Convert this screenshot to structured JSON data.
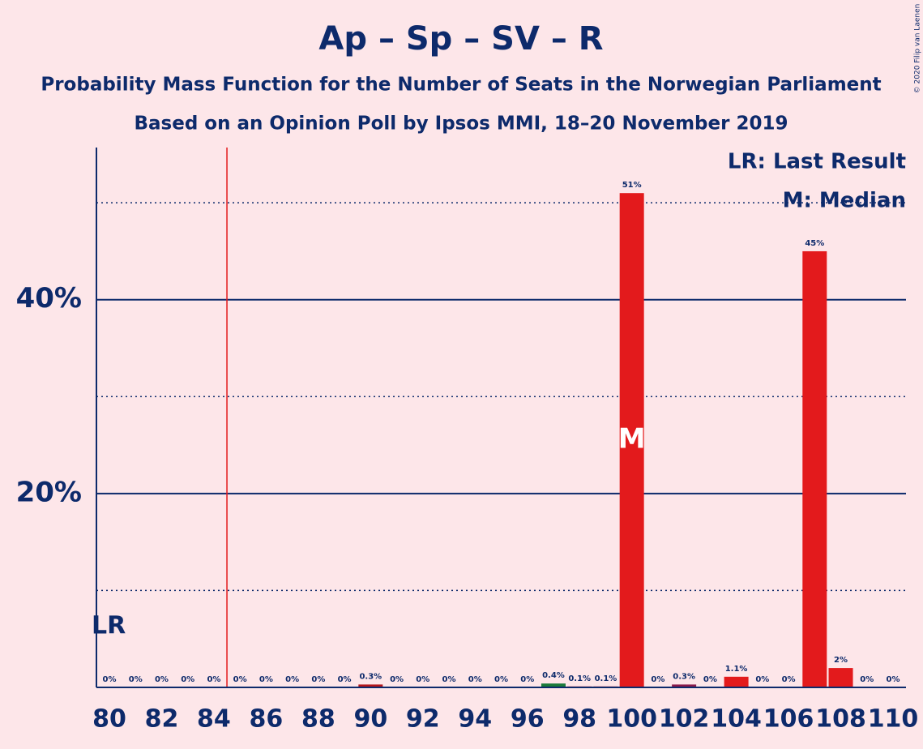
{
  "chart_data": {
    "type": "bar",
    "title": "Ap – Sp – SV – R",
    "subtitle": "Probability Mass Function for the Number of Seats in the Norwegian Parliament",
    "subtitle2": "Based on an Opinion Poll by Ipsos MMI, 18–20 November 2019",
    "copyright": "© 2020 Filip van Laenen",
    "x": [
      80,
      81,
      82,
      83,
      84,
      85,
      86,
      87,
      88,
      89,
      90,
      91,
      92,
      93,
      94,
      95,
      96,
      97,
      98,
      99,
      100,
      101,
      102,
      103,
      104,
      105,
      106,
      107,
      108,
      109,
      110
    ],
    "values": [
      0,
      0,
      0,
      0,
      0,
      0,
      0,
      0,
      0,
      0,
      0.3,
      0,
      0,
      0,
      0,
      0,
      0,
      0.4,
      0.1,
      0.1,
      51,
      0,
      0.3,
      0,
      1.1,
      0,
      0,
      45,
      2,
      0,
      0
    ],
    "value_labels": [
      "0%",
      "0%",
      "0%",
      "0%",
      "0%",
      "0%",
      "0%",
      "0%",
      "0%",
      "0%",
      "0.3%",
      "0%",
      "0%",
      "0%",
      "0%",
      "0%",
      "0%",
      "0.4%",
      "0.1%",
      "0.1%",
      "51%",
      "0%",
      "0.3%",
      "0%",
      "1.1%",
      "0%",
      "0%",
      "45%",
      "2%",
      "0%",
      "0%"
    ],
    "colors": [
      "#e31a1c",
      "#e31a1c",
      "#e31a1c",
      "#e31a1c",
      "#e31a1c",
      "#e31a1c",
      "#e31a1c",
      "#e31a1c",
      "#e31a1c",
      "#e31a1c",
      "#b5161b",
      "#e31a1c",
      "#e31a1c",
      "#e31a1c",
      "#e31a1c",
      "#e31a1c",
      "#e31a1c",
      "#1a7a3a",
      "#e31a1c",
      "#e31a1c",
      "#e31a1c",
      "#e31a1c",
      "#8b1a4a",
      "#e31a1c",
      "#e31a1c",
      "#e31a1c",
      "#e31a1c",
      "#e31a1c",
      "#e31a1c",
      "#e31a1c",
      "#e31a1c"
    ],
    "xlim": [
      79.5,
      110.5
    ],
    "xticks": [
      80,
      82,
      84,
      86,
      88,
      90,
      92,
      94,
      96,
      98,
      100,
      102,
      104,
      106,
      108,
      110
    ],
    "ylim": [
      0,
      55.7
    ],
    "yticks": [
      {
        "value": 20,
        "label": "20%"
      },
      {
        "value": 40,
        "label": "40%"
      }
    ],
    "minor_yticks": [
      10,
      30,
      50
    ],
    "grid": true,
    "last_result": 85,
    "last_result_marker": "LR",
    "median": 100,
    "median_marker": "M",
    "legend": [
      "LR: Last Result",
      "M: Median"
    ],
    "legend_position": "upper right"
  }
}
